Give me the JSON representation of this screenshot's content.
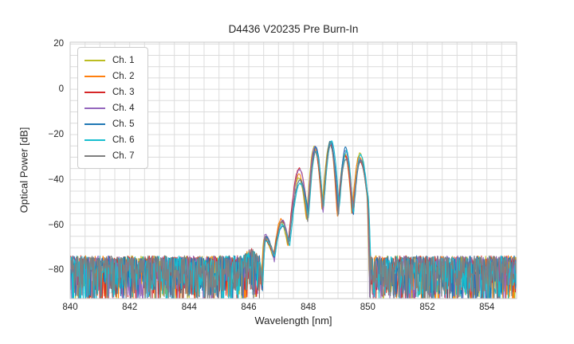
{
  "figure": {
    "background": "#ffffff",
    "text_color": "#262626"
  },
  "chart_data": {
    "type": "line",
    "title": "D4436 V20235 Pre Burn-In",
    "xlabel": "Wavelength [nm]",
    "ylabel": "Optical Power [dB]",
    "xlim": [
      840,
      855
    ],
    "ylim": [
      -92.5,
      20.8
    ],
    "x_ticks": [
      {
        "v": 840,
        "label": "840"
      },
      {
        "v": 842,
        "label": "842"
      },
      {
        "v": 844,
        "label": "844"
      },
      {
        "v": 846,
        "label": "846"
      },
      {
        "v": 848,
        "label": "848"
      },
      {
        "v": 850,
        "label": "850"
      },
      {
        "v": 852,
        "label": "852"
      },
      {
        "v": 854,
        "label": "854"
      }
    ],
    "y_ticks": [
      {
        "v": 20,
        "label": "20"
      },
      {
        "v": 0,
        "label": "0"
      },
      {
        "v": -20,
        "label": "−20"
      },
      {
        "v": -40,
        "label": "−40"
      },
      {
        "v": -60,
        "label": "−60"
      },
      {
        "v": -80,
        "label": "−80"
      }
    ],
    "grid": {
      "x_step_nm": 0.5,
      "y_step_db": 5,
      "color": "#dcdcdc",
      "spine_color": "#c9c9c9"
    },
    "legend": {
      "position": "upper left"
    },
    "series": [
      {
        "name": "Ch. 1",
        "color": "#bcbd22",
        "offset_nm": -0.03
      },
      {
        "name": "Ch. 2",
        "color": "#ff7f0e",
        "offset_nm": -0.022
      },
      {
        "name": "Ch. 3",
        "color": "#d62728",
        "offset_nm": -0.01
      },
      {
        "name": "Ch. 4",
        "color": "#9467bd",
        "offset_nm": 0.0
      },
      {
        "name": "Ch. 5",
        "color": "#1f77b4",
        "offset_nm": 0.01
      },
      {
        "name": "Ch. 6",
        "color": "#17becf",
        "offset_nm": 0.022
      },
      {
        "name": "Ch. 7",
        "color": "#7f7f7f",
        "offset_nm": 0.004
      }
    ],
    "spectrum_shape": [
      {
        "wl": 846.36,
        "db": -77.0,
        "kind": "edge",
        "spread_db": 1.5
      },
      {
        "wl": 846.44,
        "db": -89.0,
        "kind": "valley",
        "spread_db": 3.0
      },
      {
        "wl": 846.56,
        "db": -65.5,
        "kind": "peak",
        "spread_db": 1.5
      },
      {
        "wl": 846.86,
        "db": -74.5,
        "kind": "valley",
        "spread_db": 2.5
      },
      {
        "wl": 847.12,
        "db": -59.0,
        "kind": "peak",
        "spread_db": 2.0
      },
      {
        "wl": 847.34,
        "db": -69.0,
        "kind": "valley",
        "spread_db": 2.5
      },
      {
        "wl": 847.7,
        "db": -38.0,
        "kind": "peak",
        "spread_db": 4.0
      },
      {
        "wl": 847.98,
        "db": -56.5,
        "kind": "valley",
        "spread_db": 3.0
      },
      {
        "wl": 848.24,
        "db": -26.5,
        "kind": "peak",
        "spread_db": 1.5
      },
      {
        "wl": 848.5,
        "db": -53.5,
        "kind": "valley",
        "spread_db": 3.0
      },
      {
        "wl": 848.75,
        "db": -24.0,
        "kind": "peak",
        "spread_db": 1.2
      },
      {
        "wl": 849.01,
        "db": -55.0,
        "kind": "valley",
        "spread_db": 3.0
      },
      {
        "wl": 849.26,
        "db": -29.0,
        "kind": "peak",
        "spread_db": 3.5
      },
      {
        "wl": 849.5,
        "db": -54.0,
        "kind": "valley",
        "spread_db": 3.0
      },
      {
        "wl": 849.75,
        "db": -29.5,
        "kind": "peak",
        "spread_db": 3.5
      },
      {
        "wl": 849.97,
        "db": -45.0,
        "kind": "shoulder",
        "spread_db": 2.0
      },
      {
        "wl": 850.07,
        "db": -77.0,
        "kind": "edge",
        "spread_db": 2.0
      }
    ],
    "noise_floor": {
      "top_db": -73.5,
      "depth_db": 20,
      "dip_chance": 0.06,
      "dip_extra_db": 7
    },
    "noise_hump": {
      "center_nm": 846.08,
      "height_db": 3.5,
      "sigma_nm": 0.13
    },
    "sample_step_nm": 0.02
  }
}
